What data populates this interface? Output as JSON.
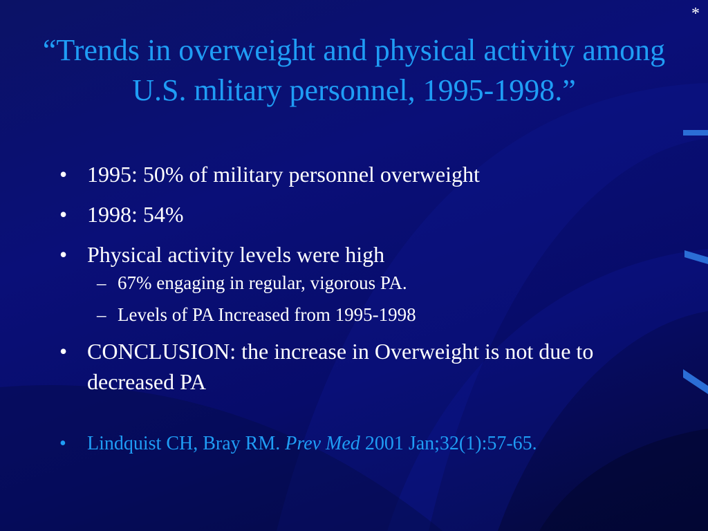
{
  "slide": {
    "corner_mark": "*",
    "title": "“Trends in overweight and physical activity among U.S. mlitary personnel, 1995-1998.”",
    "bullet_marker": "•",
    "sub_marker": "–",
    "bullets": [
      {
        "text": "1995:   50% of military personnel overweight"
      },
      {
        "text": "1998:  54%"
      },
      {
        "text": "Physical activity levels were high"
      },
      {
        "text": "CONCLUSION:  the increase in Overweight is not due to decreased PA"
      }
    ],
    "sub_bullets": [
      {
        "text": "67% engaging in regular, vigorous PA."
      },
      {
        "text": "Levels of PA Increased from 1995-1998"
      }
    ],
    "reference": {
      "authors": "Lindquist CH, Bray RM.",
      "journal": "Prev Med",
      "details": "2001 Jan;32(1):57-65."
    }
  },
  "colors": {
    "background": "#0a0f78",
    "title": "#1f9df5",
    "text": "#ffffff",
    "reference": "#1f9df5",
    "accent": "#2b6ed6"
  }
}
